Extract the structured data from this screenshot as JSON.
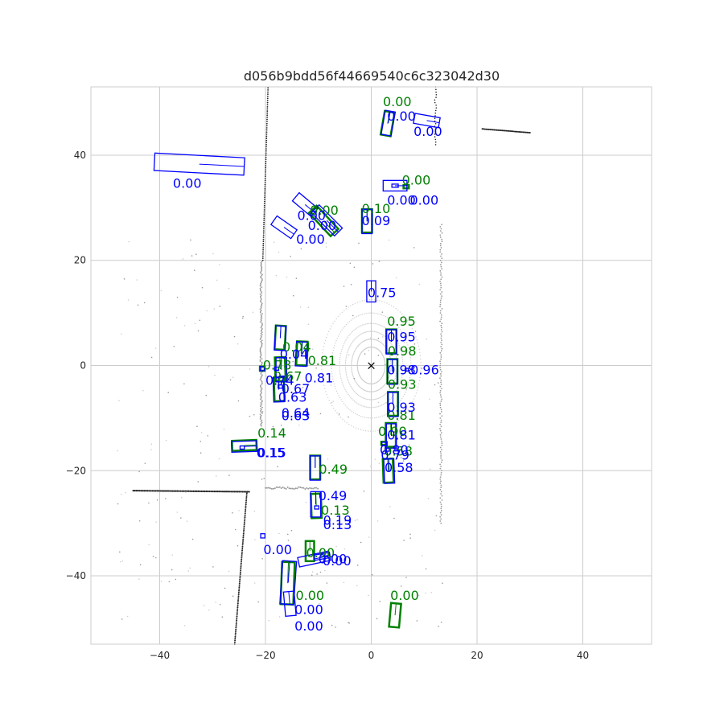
{
  "chart_data": {
    "type": "scatter",
    "title": "d056b9bdd56f44669540c6c323042d30",
    "xlabel": "",
    "ylabel": "",
    "xlim": [
      -53,
      53
    ],
    "ylim": [
      -53,
      53
    ],
    "xticks": [
      -40,
      -20,
      0,
      20,
      40
    ],
    "yticks": [
      -40,
      -20,
      0,
      20,
      40
    ],
    "grid": true,
    "colors": {
      "ground_truth": "#008000",
      "prediction": "#0000ff",
      "points_light": "#cfcfcf",
      "points_mid": "#9a9a9a",
      "points_dark": "#222222"
    },
    "ego_marker": {
      "x": 0,
      "y": 0,
      "symbol": "×"
    },
    "ground_truth_boxes": [
      {
        "cx": 3.1,
        "cy": 46.0,
        "length": 4.5,
        "width": 1.9,
        "heading_deg": 80,
        "label": "0.00",
        "lx": 2.2,
        "ly": 49.3
      },
      {
        "cx": 6.6,
        "cy": 34.0,
        "length": 1.0,
        "width": 0.6,
        "heading_deg": 0,
        "label": "0.00",
        "lx": 5.8,
        "ly": 34.4
      },
      {
        "cx": -0.8,
        "cy": 27.5,
        "length": 4.4,
        "width": 1.9,
        "heading_deg": 90,
        "label": "0.10",
        "lx": -1.8,
        "ly": 29.0
      },
      {
        "cx": -9.0,
        "cy": 27.5,
        "length": 6.0,
        "width": 2.0,
        "heading_deg": -47,
        "label": "0.00",
        "lx": -11.6,
        "ly": 28.7
      },
      {
        "cx": -17.2,
        "cy": 5.3,
        "length": 4.5,
        "width": 1.9,
        "heading_deg": 87,
        "label": "0.04",
        "lx": -16.8,
        "ly": 2.7
      },
      {
        "cx": -13.1,
        "cy": 2.3,
        "length": 4.5,
        "width": 2.0,
        "heading_deg": 88,
        "label": "0.81",
        "lx": -12.0,
        "ly": 0.1
      },
      {
        "cx": -17.2,
        "cy": -0.7,
        "length": 4.5,
        "width": 1.9,
        "heading_deg": 92,
        "label": "0.78",
        "lx": -20.5,
        "ly": -0.8
      },
      {
        "cx": -17.4,
        "cy": -4.5,
        "length": 4.5,
        "width": 1.9,
        "heading_deg": 92,
        "label": "0.67",
        "lx": -18.5,
        "ly": -2.9
      },
      {
        "cx": -20.6,
        "cy": -0.6,
        "length": 0.9,
        "width": 0.8,
        "heading_deg": 0,
        "label": "",
        "lx": 0,
        "ly": 0
      },
      {
        "cx": 3.8,
        "cy": 4.6,
        "length": 4.5,
        "width": 1.9,
        "heading_deg": 90,
        "label": "0.95",
        "lx": 3.0,
        "ly": 7.6
      },
      {
        "cx": 4.0,
        "cy": -1.1,
        "length": 4.6,
        "width": 1.9,
        "heading_deg": 90,
        "label": "0.98",
        "lx": 3.1,
        "ly": 1.9
      },
      {
        "cx": 4.1,
        "cy": -7.3,
        "length": 4.5,
        "width": 1.9,
        "heading_deg": 90,
        "label": "0.93",
        "lx": 3.1,
        "ly": -4.4
      },
      {
        "cx": 3.7,
        "cy": -13.2,
        "length": 4.5,
        "width": 1.9,
        "heading_deg": 90,
        "label": "0.81",
        "lx": 3.0,
        "ly": -10.3
      },
      {
        "cx": 2.4,
        "cy": -14.8,
        "length": 1.0,
        "width": 0.6,
        "heading_deg": 0,
        "label": "0.90",
        "lx": 1.3,
        "ly": -13.4
      },
      {
        "cx": 3.2,
        "cy": -20.0,
        "length": 4.5,
        "width": 1.9,
        "heading_deg": 92,
        "label": "0.58",
        "lx": 2.4,
        "ly": -17.1
      },
      {
        "cx": -24.0,
        "cy": -15.2,
        "length": 4.6,
        "width": 1.9,
        "heading_deg": 2,
        "label": "0.14",
        "lx": -21.5,
        "ly": -13.7
      },
      {
        "cx": -10.6,
        "cy": -19.4,
        "length": 4.5,
        "width": 1.9,
        "heading_deg": 90,
        "label": "0.49",
        "lx": -9.9,
        "ly": -20.6
      },
      {
        "cx": -10.4,
        "cy": -26.7,
        "length": 4.6,
        "width": 1.9,
        "heading_deg": 92,
        "label": "0.13",
        "lx": -9.5,
        "ly": -28.4
      },
      {
        "cx": -11.6,
        "cy": -35.3,
        "length": 3.8,
        "width": 1.6,
        "heading_deg": 90,
        "label": "0.00",
        "lx": -12.3,
        "ly": -36.5
      },
      {
        "cx": -15.8,
        "cy": -41.4,
        "length": 8.0,
        "width": 2.4,
        "heading_deg": 88,
        "label": "0.00",
        "lx": -14.3,
        "ly": -44.6
      },
      {
        "cx": 4.5,
        "cy": -47.5,
        "length": 4.5,
        "width": 1.9,
        "heading_deg": 85,
        "label": "0.00",
        "lx": 3.6,
        "ly": -44.6
      }
    ],
    "prediction_boxes": [
      {
        "cx": 3.2,
        "cy": 46.1,
        "length": 4.6,
        "width": 1.9,
        "heading_deg": 80,
        "label": "0.00",
        "lx": 3.0,
        "ly": 46.6
      },
      {
        "cx": 10.5,
        "cy": 46.6,
        "length": 4.8,
        "width": 1.9,
        "heading_deg": -10,
        "label": "0.00",
        "lx": 8.0,
        "ly": 43.7
      },
      {
        "cx": -32.5,
        "cy": 38.3,
        "length": 17.0,
        "width": 3.3,
        "heading_deg": -3,
        "label": "0.00",
        "lx": -37.5,
        "ly": 33.8
      },
      {
        "cx": 4.5,
        "cy": 34.2,
        "length": 4.5,
        "width": 2.0,
        "heading_deg": 0,
        "label": "0.00",
        "lx": 3.0,
        "ly": 30.6
      },
      {
        "cx": 4.5,
        "cy": 34.2,
        "length": 1.2,
        "width": 0.6,
        "heading_deg": 0,
        "label": "0.00",
        "lx": 7.3,
        "ly": 30.6
      },
      {
        "cx": -0.8,
        "cy": 27.4,
        "length": 4.6,
        "width": 1.9,
        "heading_deg": 90,
        "label": "0.09",
        "lx": -1.8,
        "ly": 26.7
      },
      {
        "cx": -8.4,
        "cy": 27.6,
        "length": 6.2,
        "width": 2.1,
        "heading_deg": -45,
        "label": "0.00",
        "lx": -14.0,
        "ly": 27.7
      },
      {
        "cx": -12.5,
        "cy": 30.6,
        "length": 4.6,
        "width": 2.0,
        "heading_deg": -40,
        "label": "0.00",
        "lx": -12.0,
        "ly": 25.8
      },
      {
        "cx": -16.5,
        "cy": 26.3,
        "length": 4.6,
        "width": 2.0,
        "heading_deg": -35,
        "label": "0.00",
        "lx": -14.2,
        "ly": 23.2
      },
      {
        "cx": 0.0,
        "cy": 14.1,
        "length": 4.0,
        "width": 1.7,
        "heading_deg": 90,
        "label": "0.75",
        "lx": -0.7,
        "ly": 13.0
      },
      {
        "cx": -17.2,
        "cy": 5.2,
        "length": 4.6,
        "width": 2.0,
        "heading_deg": 87,
        "label": "0.04",
        "lx": -17.3,
        "ly": 1.3
      },
      {
        "cx": -13.2,
        "cy": 2.2,
        "length": 4.6,
        "width": 2.1,
        "heading_deg": 87,
        "label": "0.81",
        "lx": -12.6,
        "ly": -3.2
      },
      {
        "cx": -17.0,
        "cy": -0.8,
        "length": 4.6,
        "width": 2.0,
        "heading_deg": 90,
        "label": "0.74",
        "lx": -20.0,
        "ly": -3.7
      },
      {
        "cx": -17.5,
        "cy": -4.6,
        "length": 4.6,
        "width": 2.0,
        "heading_deg": 92,
        "label": "0.67",
        "lx": -17.0,
        "ly": -5.3
      },
      {
        "cx": -17.9,
        "cy": -0.6,
        "length": 0.8,
        "width": 0.6,
        "heading_deg": 0,
        "label": "0.63",
        "lx": -17.6,
        "ly": -6.9
      },
      {
        "cx": -17.2,
        "cy": -4.0,
        "length": 0.8,
        "width": 0.6,
        "heading_deg": 0,
        "label": "0.64",
        "lx": -17.0,
        "ly": -9.9
      },
      {
        "cx": -20.6,
        "cy": -0.6,
        "length": 0.8,
        "width": 0.8,
        "heading_deg": 0,
        "label": "0.63",
        "lx": -17.0,
        "ly": -10.4
      },
      {
        "cx": 3.8,
        "cy": 4.5,
        "length": 4.6,
        "width": 1.9,
        "heading_deg": 90,
        "label": "0.95",
        "lx": 3.0,
        "ly": 4.6
      },
      {
        "cx": 4.0,
        "cy": -1.2,
        "length": 4.7,
        "width": 1.9,
        "heading_deg": 90,
        "label": "0.98",
        "lx": 3.0,
        "ly": -1.7
      },
      {
        "cx": 6.7,
        "cy": -0.8,
        "length": 0.6,
        "width": 0.5,
        "heading_deg": 0,
        "label": "0.96",
        "lx": 7.4,
        "ly": -1.7
      },
      {
        "cx": 4.1,
        "cy": -7.4,
        "length": 4.6,
        "width": 1.9,
        "heading_deg": 90,
        "label": "0.93",
        "lx": 3.0,
        "ly": -8.8
      },
      {
        "cx": 3.8,
        "cy": -13.4,
        "length": 4.6,
        "width": 1.9,
        "heading_deg": 90,
        "label": "0.81",
        "lx": 3.0,
        "ly": -14.1
      },
      {
        "cx": 2.5,
        "cy": -14.9,
        "length": 1.0,
        "width": 0.6,
        "heading_deg": 0,
        "label": "0.80",
        "lx": 1.6,
        "ly": -16.9
      },
      {
        "cx": 3.0,
        "cy": -16.0,
        "length": 0.8,
        "width": 0.6,
        "heading_deg": 0,
        "label": "0.79",
        "lx": 1.8,
        "ly": -17.9
      },
      {
        "cx": 3.4,
        "cy": -20.1,
        "length": 4.6,
        "width": 1.9,
        "heading_deg": 92,
        "label": "0.58",
        "lx": 2.5,
        "ly": -20.3
      },
      {
        "cx": -24.0,
        "cy": -15.4,
        "length": 4.8,
        "width": 2.0,
        "heading_deg": 2,
        "label": "0.15",
        "lx": -21.7,
        "ly": -17.4
      },
      {
        "cx": -24.4,
        "cy": -15.6,
        "length": 0.8,
        "width": 0.6,
        "heading_deg": 0,
        "label": "0.15",
        "lx": -21.5,
        "ly": -17.4
      },
      {
        "cx": -10.6,
        "cy": -19.5,
        "length": 4.6,
        "width": 1.9,
        "heading_deg": 90,
        "label": "0.49",
        "lx": -10.0,
        "ly": -25.6
      },
      {
        "cx": -10.5,
        "cy": -26.4,
        "length": 4.8,
        "width": 1.9,
        "heading_deg": 90,
        "label": "0.13",
        "lx": -9.1,
        "ly": -31.1
      },
      {
        "cx": -10.3,
        "cy": -27.0,
        "length": 0.8,
        "width": 0.6,
        "heading_deg": 0,
        "label": "0.19",
        "lx": -9.1,
        "ly": -30.3
      },
      {
        "cx": -20.5,
        "cy": -32.4,
        "length": 0.8,
        "width": 0.8,
        "heading_deg": 0,
        "label": "0.00",
        "lx": -20.4,
        "ly": -35.9
      },
      {
        "cx": -9.3,
        "cy": -36.3,
        "length": 3.0,
        "width": 1.0,
        "heading_deg": 10,
        "label": "0.00",
        "lx": -10.0,
        "ly": -37.6
      },
      {
        "cx": -10.8,
        "cy": -36.8,
        "length": 6.0,
        "width": 1.8,
        "heading_deg": 12,
        "label": "0.00",
        "lx": -9.2,
        "ly": -38.0
      },
      {
        "cx": -15.7,
        "cy": -41.3,
        "length": 8.2,
        "width": 2.6,
        "heading_deg": 86,
        "label": "0.00",
        "lx": -14.5,
        "ly": -47.3
      },
      {
        "cx": -15.4,
        "cy": -45.3,
        "length": 4.6,
        "width": 2.0,
        "heading_deg": 95,
        "label": "0.00",
        "lx": -14.5,
        "ly": -50.4
      }
    ]
  }
}
